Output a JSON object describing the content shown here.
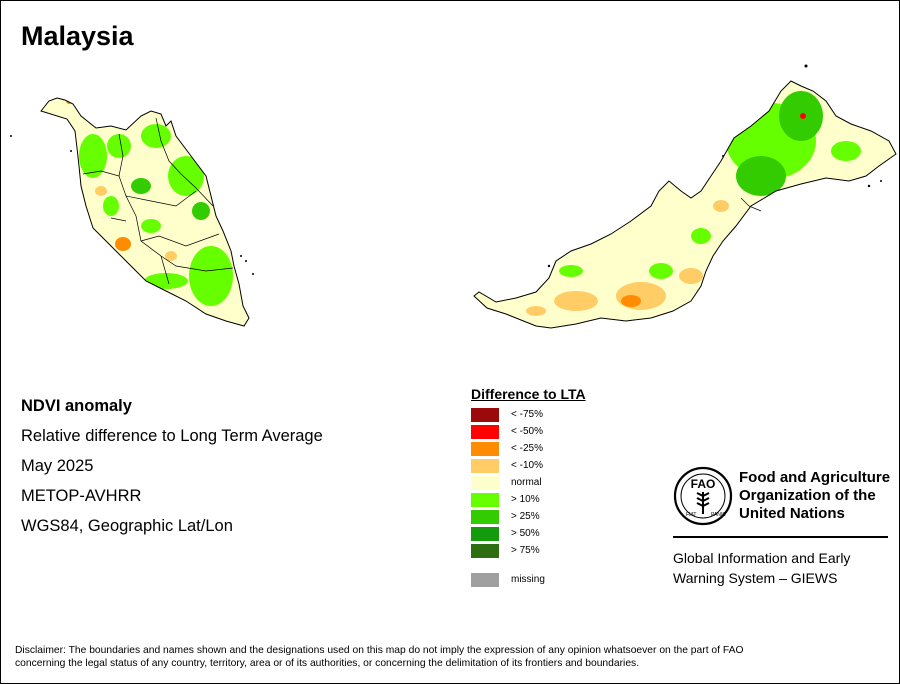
{
  "title": "Malaysia",
  "info": {
    "product": "NDVI anomaly",
    "description": "Relative difference to Long Term Average",
    "period": "May 2025",
    "sensor": "METOP-AVHRR",
    "projection": "WGS84, Geographic Lat/Lon"
  },
  "legend": {
    "title": "Difference to LTA",
    "items": [
      {
        "label": "< -75%",
        "color": "#9b0a0a"
      },
      {
        "label": "< -50%",
        "color": "#ff0000"
      },
      {
        "label": "< -25%",
        "color": "#ff8c00"
      },
      {
        "label": "< -10%",
        "color": "#ffcc66"
      },
      {
        "label": "normal",
        "color": "#ffffcc"
      },
      {
        "label": "> 10%",
        "color": "#66ff00"
      },
      {
        "label": "> 25%",
        "color": "#33cc00"
      },
      {
        "label": "> 50%",
        "color": "#139a0d"
      },
      {
        "label": "> 75%",
        "color": "#2e6e11"
      }
    ],
    "missing": {
      "label": "missing",
      "color": "#a0a0a0"
    }
  },
  "org": {
    "line1": "Food and Agriculture",
    "line2": "Organization of the",
    "line3": "United Nations",
    "logo_text": "FAO",
    "logo_motto_left": "FIAT",
    "logo_motto_right": "PANIS",
    "system_line1": "Global Information and Early",
    "system_line2": "Warning System – GIEWS"
  },
  "disclaimer": {
    "line1": "Disclaimer: The boundaries and names shown and the designations used on this map do not imply the expression of any opinion whatsoever on the part of FAO",
    "line2": "concerning the legal status of any country, territory, area or of its authorities, or concerning the delimitation of its frontiers and boundaries."
  }
}
